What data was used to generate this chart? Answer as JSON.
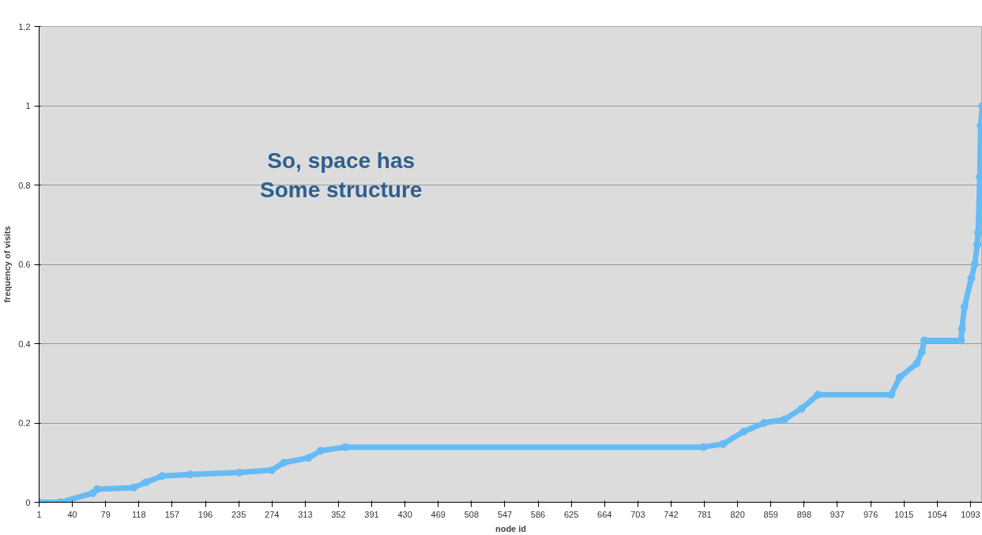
{
  "chart_data": {
    "type": "line",
    "xlabel": "node id",
    "ylabel": "frequency of visits",
    "annotations": [
      "So, space has\nSome structure"
    ],
    "x": [
      1,
      26,
      64,
      69,
      112,
      126,
      145,
      178,
      236,
      274,
      288,
      317,
      331,
      360,
      780,
      803,
      827,
      851,
      875,
      895,
      914,
      1000,
      1010,
      1030,
      1036,
      1039,
      1082,
      1083,
      1086,
      1094,
      1098,
      1101,
      1102,
      1104,
      1105,
      1107
    ],
    "series": [
      {
        "color": "#66bbf5",
        "values": [
          0,
          0,
          0.023,
          0.033,
          0.037,
          0.05,
          0.066,
          0.07,
          0.075,
          0.081,
          0.1,
          0.112,
          0.13,
          0.139,
          0.139,
          0.147,
          0.178,
          0.2,
          0.209,
          0.236,
          0.271,
          0.271,
          0.315,
          0.35,
          0.379,
          0.408,
          0.408,
          0.437,
          0.493,
          0.565,
          0.6,
          0.65,
          0.68,
          0.82,
          0.95,
          1.0
        ]
      }
    ],
    "xlim": [
      1,
      1107
    ],
    "xticks": [
      1,
      40,
      79,
      118,
      157,
      196,
      235,
      274,
      313,
      352,
      391,
      430,
      469,
      508,
      547,
      586,
      625,
      664,
      703,
      742,
      781,
      820,
      859,
      898,
      937,
      976,
      1015,
      1054,
      1093
    ],
    "ylim": [
      0,
      1.2
    ],
    "yticks": [
      0,
      0.2,
      0.4,
      0.6,
      0.8,
      1,
      1.2
    ],
    "grid": "y",
    "marker": "circle",
    "line_style": "solid"
  }
}
